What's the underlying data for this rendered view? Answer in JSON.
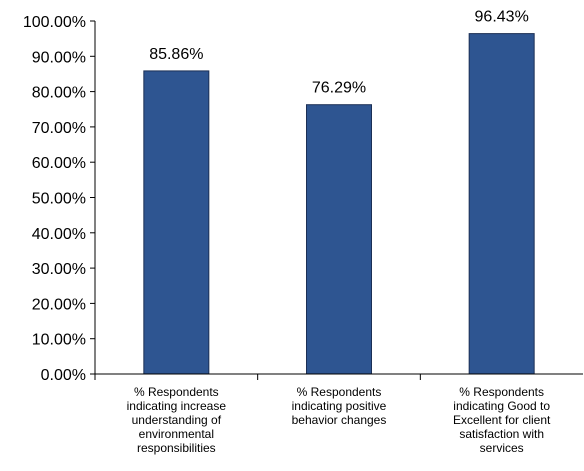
{
  "chart_data": {
    "type": "bar",
    "title": "",
    "xlabel": "",
    "ylabel": "",
    "categories": [
      "% Respondents indicating increase understanding of environmental responsibilities",
      "% Respondents indicating positive behavior changes",
      "% Respondents indicating Good to Excellent for client satisfaction with services"
    ],
    "category_lines": [
      [
        "% Respondents",
        "indicating increase",
        "understanding of",
        "environmental",
        "responsibilities"
      ],
      [
        "% Respondents",
        "indicating positive",
        "behavior changes"
      ],
      [
        "% Respondents",
        "indicating Good to",
        "Excellent for client",
        "satisfaction with",
        "services"
      ]
    ],
    "values": [
      85.86,
      76.29,
      96.43
    ],
    "data_labels": [
      "85.86%",
      "76.29%",
      "96.43%"
    ],
    "ylim": [
      0,
      100
    ],
    "yticks": [
      0,
      10,
      20,
      30,
      40,
      50,
      60,
      70,
      80,
      90,
      100
    ],
    "ytick_labels": [
      "0.00%",
      "10.00%",
      "20.00%",
      "30.00%",
      "40.00%",
      "50.00%",
      "60.00%",
      "70.00%",
      "80.00%",
      "90.00%",
      "100.00%"
    ],
    "grid": false,
    "legend": "none",
    "bar_color": "#2E5591",
    "bar_edge_color": "#1B2F55"
  }
}
